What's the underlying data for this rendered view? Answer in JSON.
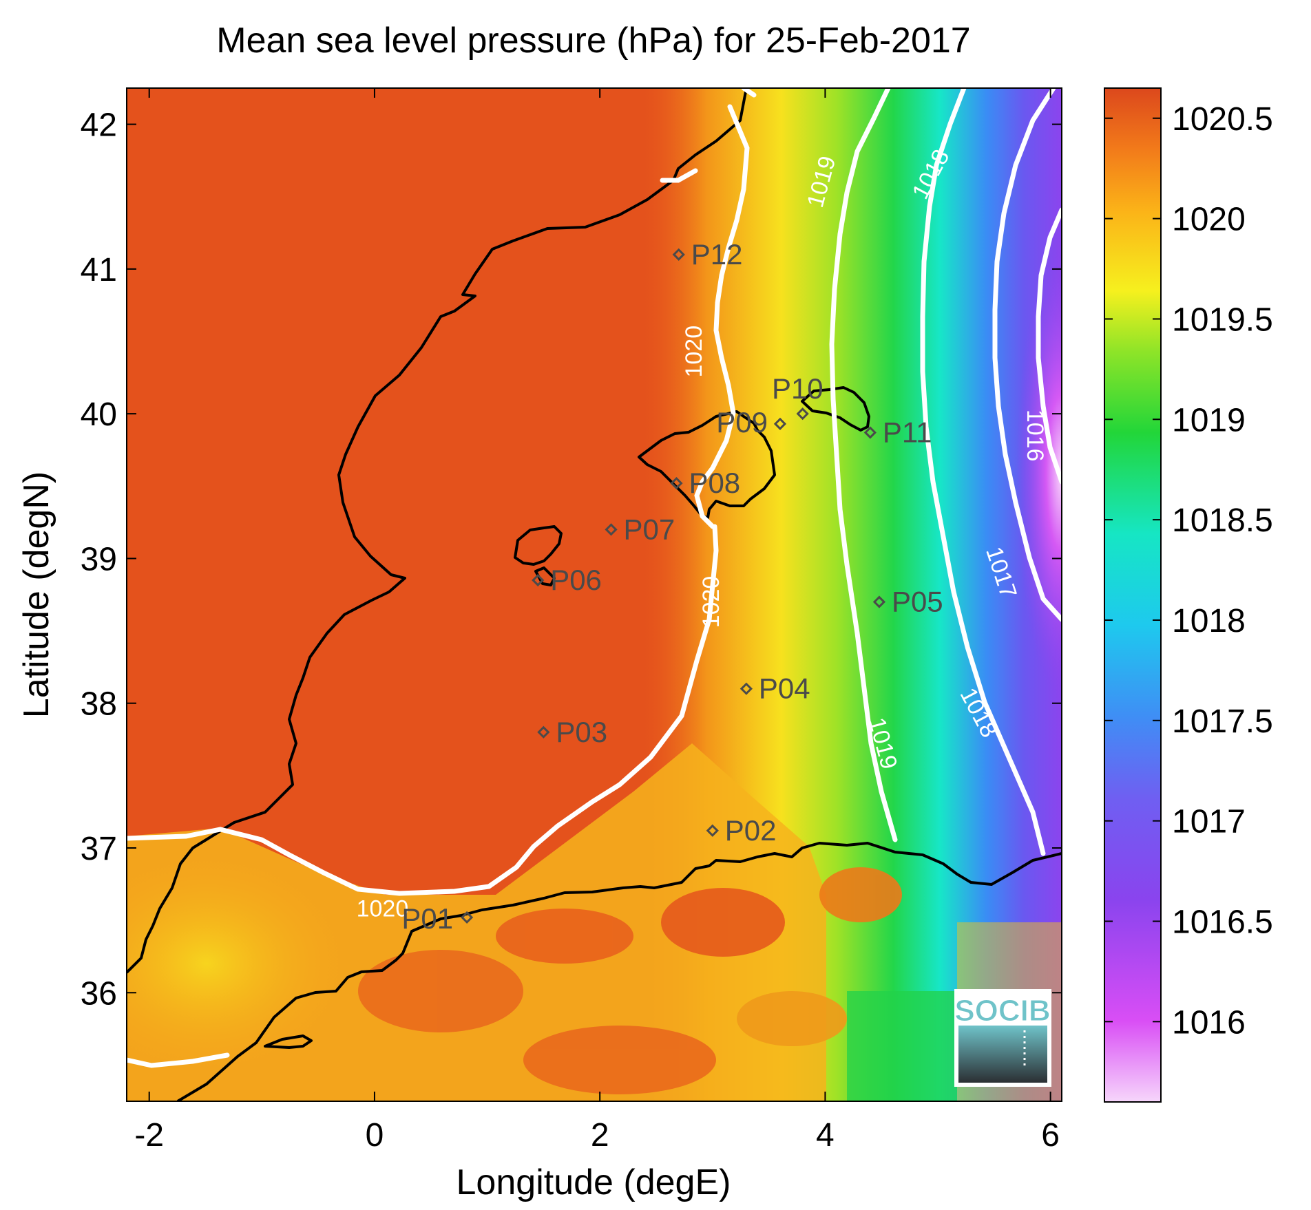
{
  "title": "Mean sea level pressure (hPa) for 25-Feb-2017",
  "x_axis": {
    "label": "Longitude (degE)",
    "range": [
      -2.2,
      6.1
    ],
    "ticks": [
      -2,
      0,
      2,
      4,
      6
    ]
  },
  "y_axis": {
    "label": "Latitude (degN)",
    "range": [
      35.25,
      42.25
    ],
    "ticks": [
      36,
      37,
      38,
      39,
      40,
      41,
      42
    ]
  },
  "colorbar": {
    "range": [
      1015.6,
      1020.65
    ],
    "ticks": [
      "1016",
      "1016.5",
      "1017",
      "1017.5",
      "1018",
      "1018.5",
      "1019",
      "1019.5",
      "1020",
      "1020.5"
    ]
  },
  "contour_labels": [
    {
      "text": "1020",
      "lon": 0.07,
      "lat": 36.57,
      "rot": 0
    },
    {
      "text": "1020",
      "lon": 3.0,
      "lat": 38.7,
      "rot": -90
    },
    {
      "text": "1020",
      "lon": 2.85,
      "lat": 40.43,
      "rot": -90
    },
    {
      "text": "1019",
      "lon": 3.98,
      "lat": 41.6,
      "rot": -75
    },
    {
      "text": "1019",
      "lon": 4.5,
      "lat": 37.72,
      "rot": 75
    },
    {
      "text": "1018",
      "lon": 4.95,
      "lat": 41.65,
      "rot": -62
    },
    {
      "text": "1018",
      "lon": 5.35,
      "lat": 37.93,
      "rot": 62
    },
    {
      "text": "1017",
      "lon": 5.55,
      "lat": 38.9,
      "rot": 72
    },
    {
      "text": "1016",
      "lon": 5.85,
      "lat": 39.85,
      "rot": 90
    }
  ],
  "stations": [
    {
      "name": "P01",
      "lon": 0.82,
      "lat": 36.52
    },
    {
      "name": "P02",
      "lon": 3.0,
      "lat": 37.12
    },
    {
      "name": "P03",
      "lon": 1.5,
      "lat": 37.8
    },
    {
      "name": "P04",
      "lon": 3.3,
      "lat": 38.1
    },
    {
      "name": "P05",
      "lon": 4.48,
      "lat": 38.7
    },
    {
      "name": "P06",
      "lon": 1.45,
      "lat": 38.85
    },
    {
      "name": "P07",
      "lon": 2.1,
      "lat": 39.2
    },
    {
      "name": "P08",
      "lon": 2.68,
      "lat": 39.52
    },
    {
      "name": "P09",
      "lon": 3.6,
      "lat": 39.93
    },
    {
      "name": "P10",
      "lon": 3.8,
      "lat": 40.0
    },
    {
      "name": "P11",
      "lon": 4.4,
      "lat": 39.87
    },
    {
      "name": "P12",
      "lon": 2.7,
      "lat": 41.1
    }
  ],
  "logo_text": "SOCIB",
  "colors": {
    "high": "#dd4a1b",
    "mid": "#f5e41e",
    "green": "#22cc33",
    "cyan": "#1ee6d8",
    "blue": "#4466ff",
    "violet": "#8844ee",
    "magenta": "#cc44ff",
    "contour": "#ffffff",
    "coast": "#000000",
    "station": "#4a4a4a"
  }
}
